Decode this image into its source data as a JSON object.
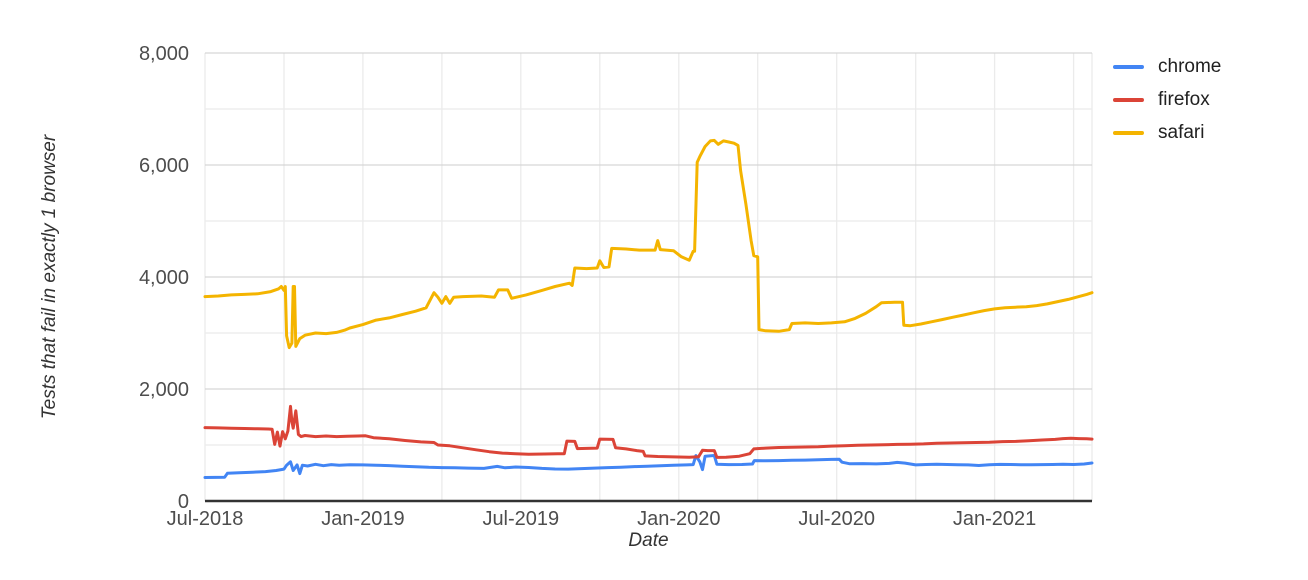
{
  "chart_data": {
    "type": "line",
    "title": "",
    "xlabel": "Date",
    "ylabel": "Tests that fail in exactly 1 browser",
    "grid": true,
    "legend_position": "top-right",
    "x_unit": "months since Jul-2018",
    "x_range": [
      0,
      33.7
    ],
    "ylim": [
      0,
      8000
    ],
    "x_ticks": [
      {
        "month": 0,
        "label": "Jul-2018"
      },
      {
        "month": 6,
        "label": "Jan-2019"
      },
      {
        "month": 12,
        "label": "Jul-2019"
      },
      {
        "month": 18,
        "label": "Jan-2020"
      },
      {
        "month": 24,
        "label": "Jul-2020"
      },
      {
        "month": 30,
        "label": "Jan-2021"
      }
    ],
    "x_gridline_months": [
      3,
      6,
      9,
      12,
      15,
      18,
      21,
      24,
      27,
      30,
      33
    ],
    "y_ticks": [
      {
        "value": 0,
        "label": "0"
      },
      {
        "value": 2000,
        "label": "2,000"
      },
      {
        "value": 4000,
        "label": "4,000"
      },
      {
        "value": 6000,
        "label": "6,000"
      },
      {
        "value": 8000,
        "label": "8,000"
      }
    ],
    "y_minor_gridlines": [
      1000,
      3000,
      5000,
      7000
    ],
    "series": [
      {
        "name": "chrome",
        "color": "#4285F4",
        "points": [
          [
            0,
            420
          ],
          [
            0.4,
            422
          ],
          [
            0.75,
            425
          ],
          [
            0.85,
            495
          ],
          [
            1.3,
            505
          ],
          [
            1.8,
            515
          ],
          [
            2.3,
            525
          ],
          [
            2.7,
            545
          ],
          [
            3.0,
            570
          ],
          [
            3.1,
            640
          ],
          [
            3.25,
            700
          ],
          [
            3.35,
            545
          ],
          [
            3.5,
            645
          ],
          [
            3.6,
            490
          ],
          [
            3.7,
            640
          ],
          [
            3.9,
            625
          ],
          [
            4.2,
            655
          ],
          [
            4.5,
            630
          ],
          [
            4.8,
            650
          ],
          [
            5.1,
            640
          ],
          [
            5.5,
            648
          ],
          [
            6.0,
            645
          ],
          [
            6.5,
            640
          ],
          [
            7.0,
            632
          ],
          [
            7.5,
            622
          ],
          [
            8.0,
            612
          ],
          [
            8.5,
            602
          ],
          [
            9.0,
            597
          ],
          [
            9.5,
            592
          ],
          [
            10.0,
            588
          ],
          [
            10.6,
            582
          ],
          [
            11.1,
            618
          ],
          [
            11.4,
            592
          ],
          [
            11.8,
            608
          ],
          [
            12.3,
            598
          ],
          [
            12.8,
            582
          ],
          [
            13.3,
            572
          ],
          [
            13.8,
            570
          ],
          [
            14.3,
            578
          ],
          [
            14.8,
            588
          ],
          [
            15.3,
            596
          ],
          [
            15.8,
            604
          ],
          [
            16.3,
            614
          ],
          [
            16.8,
            622
          ],
          [
            17.3,
            630
          ],
          [
            17.8,
            638
          ],
          [
            18.3,
            645
          ],
          [
            18.55,
            650
          ],
          [
            18.65,
            810
          ],
          [
            18.8,
            700
          ],
          [
            18.9,
            560
          ],
          [
            19.0,
            800
          ],
          [
            19.35,
            812
          ],
          [
            19.45,
            655
          ],
          [
            19.9,
            650
          ],
          [
            20.4,
            652
          ],
          [
            20.8,
            660
          ],
          [
            20.87,
            722
          ],
          [
            21.3,
            718
          ],
          [
            21.8,
            722
          ],
          [
            22.3,
            726
          ],
          [
            22.8,
            730
          ],
          [
            23.3,
            736
          ],
          [
            23.8,
            742
          ],
          [
            24.1,
            745
          ],
          [
            24.2,
            692
          ],
          [
            24.5,
            665
          ],
          [
            25.0,
            668
          ],
          [
            25.5,
            662
          ],
          [
            26.0,
            672
          ],
          [
            26.3,
            690
          ],
          [
            26.6,
            676
          ],
          [
            27.0,
            645
          ],
          [
            27.4,
            652
          ],
          [
            27.8,
            656
          ],
          [
            28.2,
            652
          ],
          [
            28.6,
            648
          ],
          [
            29.0,
            644
          ],
          [
            29.4,
            634
          ],
          [
            29.8,
            648
          ],
          [
            30.2,
            654
          ],
          [
            30.6,
            652
          ],
          [
            31.0,
            648
          ],
          [
            31.4,
            646
          ],
          [
            31.8,
            650
          ],
          [
            32.2,
            652
          ],
          [
            32.6,
            656
          ],
          [
            33.0,
            652
          ],
          [
            33.4,
            660
          ],
          [
            33.7,
            678
          ]
        ]
      },
      {
        "name": "firefox",
        "color": "#DB4437",
        "points": [
          [
            0,
            1310
          ],
          [
            0.5,
            1305
          ],
          [
            1,
            1300
          ],
          [
            1.5,
            1295
          ],
          [
            2,
            1290
          ],
          [
            2.4,
            1285
          ],
          [
            2.55,
            1280
          ],
          [
            2.65,
            1010
          ],
          [
            2.75,
            1230
          ],
          [
            2.85,
            980
          ],
          [
            2.95,
            1240
          ],
          [
            3.05,
            1110
          ],
          [
            3.15,
            1250
          ],
          [
            3.25,
            1690
          ],
          [
            3.3,
            1420
          ],
          [
            3.35,
            1300
          ],
          [
            3.45,
            1610
          ],
          [
            3.55,
            1190
          ],
          [
            3.65,
            1150
          ],
          [
            3.8,
            1170
          ],
          [
            4.2,
            1150
          ],
          [
            4.6,
            1160
          ],
          [
            5.0,
            1150
          ],
          [
            5.4,
            1155
          ],
          [
            5.8,
            1160
          ],
          [
            6.1,
            1165
          ],
          [
            6.4,
            1130
          ],
          [
            7.0,
            1110
          ],
          [
            7.6,
            1080
          ],
          [
            8.2,
            1055
          ],
          [
            8.7,
            1045
          ],
          [
            8.85,
            1000
          ],
          [
            9.3,
            985
          ],
          [
            9.8,
            950
          ],
          [
            10.3,
            915
          ],
          [
            10.8,
            880
          ],
          [
            11.3,
            855
          ],
          [
            11.8,
            845
          ],
          [
            12.3,
            835
          ],
          [
            12.9,
            840
          ],
          [
            13.4,
            845
          ],
          [
            13.65,
            845
          ],
          [
            13.75,
            1070
          ],
          [
            14.05,
            1065
          ],
          [
            14.15,
            935
          ],
          [
            14.5,
            940
          ],
          [
            14.9,
            945
          ],
          [
            15.0,
            1105
          ],
          [
            15.5,
            1100
          ],
          [
            15.6,
            950
          ],
          [
            16.0,
            930
          ],
          [
            16.4,
            900
          ],
          [
            16.65,
            885
          ],
          [
            16.72,
            805
          ],
          [
            17.2,
            795
          ],
          [
            17.8,
            788
          ],
          [
            18.4,
            782
          ],
          [
            18.75,
            790
          ],
          [
            18.9,
            905
          ],
          [
            19.1,
            900
          ],
          [
            19.35,
            900
          ],
          [
            19.45,
            778
          ],
          [
            19.8,
            782
          ],
          [
            20.3,
            800
          ],
          [
            20.7,
            845
          ],
          [
            20.85,
            930
          ],
          [
            21.3,
            945
          ],
          [
            21.8,
            955
          ],
          [
            22.3,
            960
          ],
          [
            22.8,
            965
          ],
          [
            23.3,
            970
          ],
          [
            23.8,
            980
          ],
          [
            24.3,
            985
          ],
          [
            24.8,
            995
          ],
          [
            25.3,
            1000
          ],
          [
            25.8,
            1005
          ],
          [
            26.3,
            1010
          ],
          [
            26.8,
            1015
          ],
          [
            27.3,
            1020
          ],
          [
            27.8,
            1030
          ],
          [
            28.3,
            1035
          ],
          [
            28.8,
            1040
          ],
          [
            29.3,
            1045
          ],
          [
            29.8,
            1050
          ],
          [
            30.3,
            1060
          ],
          [
            30.8,
            1065
          ],
          [
            31.3,
            1075
          ],
          [
            31.8,
            1090
          ],
          [
            32.3,
            1100
          ],
          [
            32.6,
            1115
          ],
          [
            32.9,
            1120
          ],
          [
            33.2,
            1115
          ],
          [
            33.5,
            1110
          ],
          [
            33.7,
            1105
          ]
        ]
      },
      {
        "name": "safari",
        "color": "#F4B400",
        "points": [
          [
            0,
            3650
          ],
          [
            0.5,
            3660
          ],
          [
            1,
            3680
          ],
          [
            1.5,
            3690
          ],
          [
            2,
            3700
          ],
          [
            2.5,
            3740
          ],
          [
            2.8,
            3790
          ],
          [
            2.9,
            3830
          ],
          [
            3.0,
            3760
          ],
          [
            3.05,
            3830
          ],
          [
            3.1,
            2950
          ],
          [
            3.2,
            2740
          ],
          [
            3.3,
            2820
          ],
          [
            3.35,
            3830
          ],
          [
            3.4,
            3830
          ],
          [
            3.45,
            2760
          ],
          [
            3.6,
            2900
          ],
          [
            3.8,
            2960
          ],
          [
            4.2,
            3000
          ],
          [
            4.6,
            2990
          ],
          [
            5.0,
            3010
          ],
          [
            5.3,
            3050
          ],
          [
            5.5,
            3090
          ],
          [
            6.0,
            3150
          ],
          [
            6.5,
            3230
          ],
          [
            7.0,
            3270
          ],
          [
            7.5,
            3330
          ],
          [
            8.0,
            3390
          ],
          [
            8.4,
            3450
          ],
          [
            8.7,
            3720
          ],
          [
            8.85,
            3640
          ],
          [
            9.0,
            3530
          ],
          [
            9.15,
            3650
          ],
          [
            9.3,
            3530
          ],
          [
            9.45,
            3640
          ],
          [
            9.8,
            3650
          ],
          [
            10.5,
            3660
          ],
          [
            11.0,
            3640
          ],
          [
            11.15,
            3770
          ],
          [
            11.5,
            3770
          ],
          [
            11.65,
            3620
          ],
          [
            12.2,
            3680
          ],
          [
            12.8,
            3760
          ],
          [
            13.3,
            3830
          ],
          [
            13.85,
            3890
          ],
          [
            13.95,
            3850
          ],
          [
            14.05,
            4160
          ],
          [
            14.5,
            4150
          ],
          [
            14.9,
            4160
          ],
          [
            15.0,
            4290
          ],
          [
            15.15,
            4170
          ],
          [
            15.35,
            4180
          ],
          [
            15.45,
            4510
          ],
          [
            16.0,
            4500
          ],
          [
            16.5,
            4480
          ],
          [
            17.1,
            4480
          ],
          [
            17.2,
            4650
          ],
          [
            17.3,
            4490
          ],
          [
            17.8,
            4470
          ],
          [
            18.1,
            4360
          ],
          [
            18.4,
            4300
          ],
          [
            18.55,
            4460
          ],
          [
            18.6,
            4460
          ],
          [
            18.7,
            6050
          ],
          [
            18.8,
            6150
          ],
          [
            19.0,
            6330
          ],
          [
            19.2,
            6430
          ],
          [
            19.35,
            6440
          ],
          [
            19.5,
            6370
          ],
          [
            19.7,
            6430
          ],
          [
            19.9,
            6410
          ],
          [
            20.1,
            6390
          ],
          [
            20.25,
            6350
          ],
          [
            20.35,
            5900
          ],
          [
            20.55,
            5300
          ],
          [
            20.75,
            4650
          ],
          [
            20.85,
            4380
          ],
          [
            21.0,
            4360
          ],
          [
            21.05,
            3060
          ],
          [
            21.3,
            3040
          ],
          [
            21.8,
            3030
          ],
          [
            22.2,
            3060
          ],
          [
            22.3,
            3170
          ],
          [
            22.8,
            3180
          ],
          [
            23.3,
            3170
          ],
          [
            23.8,
            3180
          ],
          [
            24.3,
            3200
          ],
          [
            24.7,
            3260
          ],
          [
            25.1,
            3350
          ],
          [
            25.5,
            3470
          ],
          [
            25.7,
            3540
          ],
          [
            26.2,
            3550
          ],
          [
            26.5,
            3550
          ],
          [
            26.55,
            3140
          ],
          [
            26.8,
            3130
          ],
          [
            27.2,
            3160
          ],
          [
            27.6,
            3200
          ],
          [
            28.0,
            3240
          ],
          [
            28.4,
            3280
          ],
          [
            28.8,
            3320
          ],
          [
            29.2,
            3360
          ],
          [
            29.6,
            3400
          ],
          [
            30.0,
            3430
          ],
          [
            30.4,
            3450
          ],
          [
            30.8,
            3460
          ],
          [
            31.2,
            3470
          ],
          [
            31.6,
            3490
          ],
          [
            32.0,
            3520
          ],
          [
            32.4,
            3560
          ],
          [
            32.8,
            3600
          ],
          [
            33.2,
            3650
          ],
          [
            33.5,
            3690
          ],
          [
            33.7,
            3720
          ]
        ]
      }
    ]
  },
  "colors": {
    "axis_line": "#333333",
    "gridline_major": "#d6d6d6",
    "gridline_minor": "#ebebeb",
    "tick_text": "#4d4d4d"
  }
}
